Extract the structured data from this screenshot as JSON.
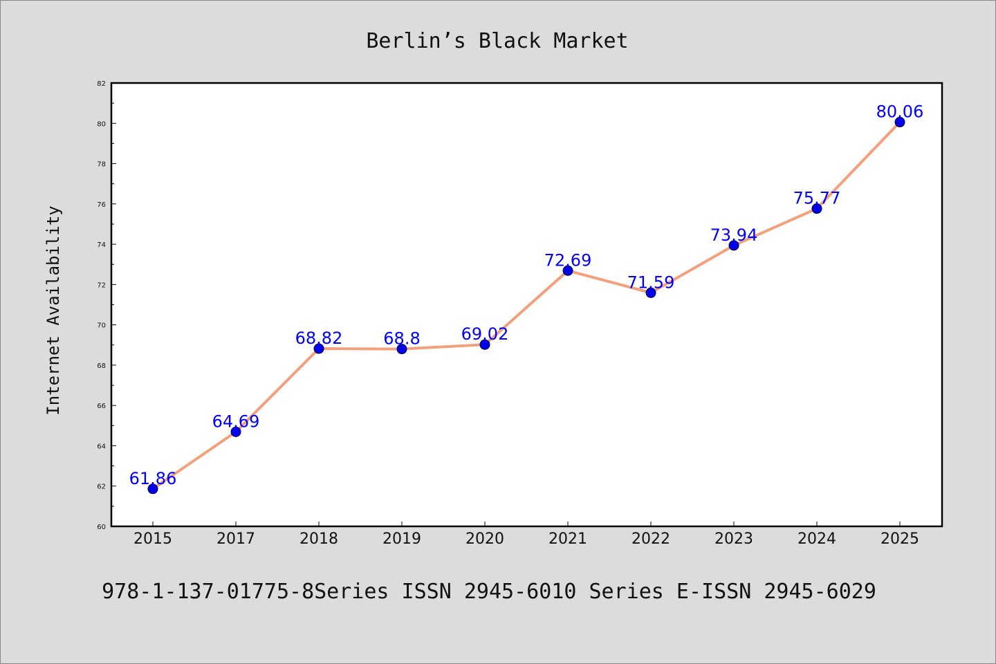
{
  "chart_data": {
    "type": "line",
    "title": "Berlin’s Black Market",
    "xlabel": "",
    "ylabel": "Internet Availability",
    "categories": [
      "2015",
      "2017",
      "2018",
      "2019",
      "2020",
      "2021",
      "2022",
      "2023",
      "2024",
      "2025"
    ],
    "series": [
      {
        "values": [
          61.86,
          64.69,
          68.82,
          68.8,
          69.02,
          72.69,
          71.59,
          73.94,
          75.77,
          80.06
        ],
        "labels": [
          "61.86",
          "64.69",
          "68.82",
          "68.8",
          "69.02",
          "72.69",
          "71.59",
          "73.94",
          "75.77",
          "80.06"
        ],
        "line_color": "#f4a07c",
        "marker_color": "#0000ee"
      }
    ],
    "ylim": [
      60,
      82
    ],
    "yticks": [
      "60",
      "62",
      "64",
      "66",
      "68",
      "70",
      "72",
      "74",
      "76",
      "78",
      "80",
      "82"
    ],
    "grid": false,
    "legend": "none"
  },
  "footer": {
    "text": "978-1-137-01775-8Series ISSN 2945-6010 Series E-ISSN 2945-6029"
  }
}
